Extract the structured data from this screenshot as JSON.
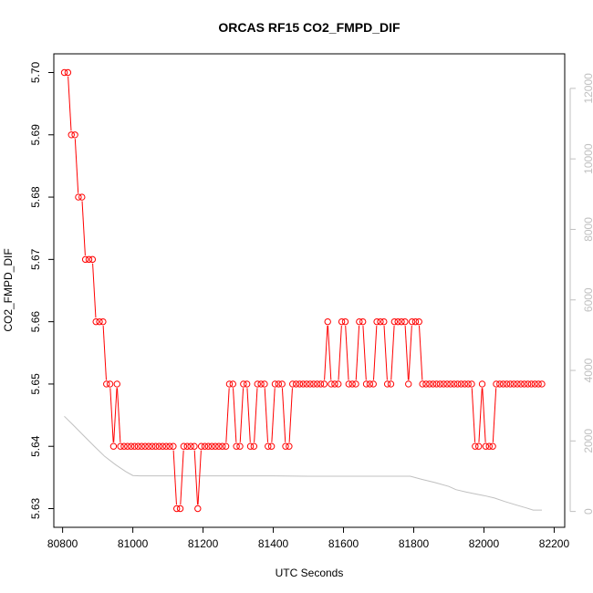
{
  "chart_data": {
    "type": "scatter",
    "title": "ORCAS RF15 CO2_FMPD_DIF",
    "xlabel": "UTC Seconds",
    "ylabel": "CO2_FMPD_DIF",
    "xlim": [
      80775,
      82230
    ],
    "ylim": [
      5.627,
      5.703
    ],
    "y2lim": [
      -450,
      12980
    ],
    "x_ticks": [
      "80800",
      "81000",
      "81200",
      "81400",
      "81600",
      "81800",
      "82000",
      "82200"
    ],
    "y_ticks": [
      "5.63",
      "5.64",
      "5.65",
      "5.66",
      "5.67",
      "5.68",
      "5.69",
      "5.70"
    ],
    "y2_ticks": [
      "0",
      "2000",
      "4000",
      "6000",
      "8000",
      "10000",
      "12000"
    ],
    "grid": false,
    "legend": "none",
    "series": [
      {
        "style": "points-and-lines",
        "color": "#ff0000",
        "points": [
          [
            80805,
            5.7
          ],
          [
            80815,
            5.7
          ],
          [
            80825,
            5.69
          ],
          [
            80835,
            5.69
          ],
          [
            80845,
            5.68
          ],
          [
            80855,
            5.68
          ],
          [
            80865,
            5.67
          ],
          [
            80875,
            5.67
          ],
          [
            80885,
            5.67
          ],
          [
            80895,
            5.66
          ],
          [
            80905,
            5.66
          ],
          [
            80915,
            5.66
          ],
          [
            80925,
            5.65
          ],
          [
            80935,
            5.65
          ],
          [
            80945,
            5.64
          ],
          [
            80955,
            5.65
          ],
          [
            80965,
            5.64
          ],
          [
            80975,
            5.64
          ],
          [
            80985,
            5.64
          ],
          [
            80995,
            5.64
          ],
          [
            81005,
            5.64
          ],
          [
            81015,
            5.64
          ],
          [
            81025,
            5.64
          ],
          [
            81035,
            5.64
          ],
          [
            81045,
            5.64
          ],
          [
            81055,
            5.64
          ],
          [
            81065,
            5.64
          ],
          [
            81075,
            5.64
          ],
          [
            81085,
            5.64
          ],
          [
            81095,
            5.64
          ],
          [
            81105,
            5.64
          ],
          [
            81115,
            5.64
          ],
          [
            81125,
            5.63
          ],
          [
            81135,
            5.63
          ],
          [
            81145,
            5.64
          ],
          [
            81155,
            5.64
          ],
          [
            81165,
            5.64
          ],
          [
            81175,
            5.64
          ],
          [
            81185,
            5.63
          ],
          [
            81195,
            5.64
          ],
          [
            81205,
            5.64
          ],
          [
            81215,
            5.64
          ],
          [
            81225,
            5.64
          ],
          [
            81235,
            5.64
          ],
          [
            81245,
            5.64
          ],
          [
            81255,
            5.64
          ],
          [
            81265,
            5.64
          ],
          [
            81275,
            5.65
          ],
          [
            81285,
            5.65
          ],
          [
            81295,
            5.64
          ],
          [
            81305,
            5.64
          ],
          [
            81315,
            5.65
          ],
          [
            81325,
            5.65
          ],
          [
            81335,
            5.64
          ],
          [
            81345,
            5.64
          ],
          [
            81355,
            5.65
          ],
          [
            81365,
            5.65
          ],
          [
            81375,
            5.65
          ],
          [
            81385,
            5.64
          ],
          [
            81395,
            5.64
          ],
          [
            81405,
            5.65
          ],
          [
            81415,
            5.65
          ],
          [
            81425,
            5.65
          ],
          [
            81435,
            5.64
          ],
          [
            81445,
            5.64
          ],
          [
            81455,
            5.65
          ],
          [
            81465,
            5.65
          ],
          [
            81475,
            5.65
          ],
          [
            81485,
            5.65
          ],
          [
            81495,
            5.65
          ],
          [
            81505,
            5.65
          ],
          [
            81515,
            5.65
          ],
          [
            81525,
            5.65
          ],
          [
            81535,
            5.65
          ],
          [
            81545,
            5.65
          ],
          [
            81555,
            5.66
          ],
          [
            81565,
            5.65
          ],
          [
            81575,
            5.65
          ],
          [
            81585,
            5.65
          ],
          [
            81595,
            5.66
          ],
          [
            81605,
            5.66
          ],
          [
            81615,
            5.65
          ],
          [
            81625,
            5.65
          ],
          [
            81635,
            5.65
          ],
          [
            81645,
            5.66
          ],
          [
            81655,
            5.66
          ],
          [
            81665,
            5.65
          ],
          [
            81675,
            5.65
          ],
          [
            81685,
            5.65
          ],
          [
            81695,
            5.66
          ],
          [
            81705,
            5.66
          ],
          [
            81715,
            5.66
          ],
          [
            81725,
            5.65
          ],
          [
            81735,
            5.65
          ],
          [
            81745,
            5.66
          ],
          [
            81755,
            5.66
          ],
          [
            81765,
            5.66
          ],
          [
            81775,
            5.66
          ],
          [
            81785,
            5.65
          ],
          [
            81795,
            5.66
          ],
          [
            81805,
            5.66
          ],
          [
            81815,
            5.66
          ],
          [
            81825,
            5.65
          ],
          [
            81835,
            5.65
          ],
          [
            81845,
            5.65
          ],
          [
            81855,
            5.65
          ],
          [
            81865,
            5.65
          ],
          [
            81875,
            5.65
          ],
          [
            81885,
            5.65
          ],
          [
            81895,
            5.65
          ],
          [
            81905,
            5.65
          ],
          [
            81915,
            5.65
          ],
          [
            81925,
            5.65
          ],
          [
            81935,
            5.65
          ],
          [
            81945,
            5.65
          ],
          [
            81955,
            5.65
          ],
          [
            81965,
            5.65
          ],
          [
            81975,
            5.64
          ],
          [
            81985,
            5.64
          ],
          [
            81995,
            5.65
          ],
          [
            82005,
            5.64
          ],
          [
            82015,
            5.64
          ],
          [
            82025,
            5.64
          ],
          [
            82035,
            5.65
          ],
          [
            82045,
            5.65
          ],
          [
            82055,
            5.65
          ],
          [
            82065,
            5.65
          ],
          [
            82075,
            5.65
          ],
          [
            82085,
            5.65
          ],
          [
            82095,
            5.65
          ],
          [
            82105,
            5.65
          ],
          [
            82115,
            5.65
          ],
          [
            82125,
            5.65
          ],
          [
            82135,
            5.65
          ],
          [
            82145,
            5.65
          ],
          [
            82155,
            5.65
          ],
          [
            82165,
            5.65
          ]
        ]
      },
      {
        "style": "line",
        "axis": "right",
        "color": "#c0c0c0",
        "points": [
          [
            80805,
            2700
          ],
          [
            80830,
            2450
          ],
          [
            80860,
            2150
          ],
          [
            80890,
            1850
          ],
          [
            80920,
            1560
          ],
          [
            80950,
            1330
          ],
          [
            80980,
            1130
          ],
          [
            81000,
            1020
          ],
          [
            81020,
            1010
          ],
          [
            81100,
            1010
          ],
          [
            81200,
            1010
          ],
          [
            81300,
            1010
          ],
          [
            81400,
            1010
          ],
          [
            81500,
            1000
          ],
          [
            81600,
            1000
          ],
          [
            81700,
            1000
          ],
          [
            81790,
            1000
          ],
          [
            81820,
            920
          ],
          [
            81860,
            820
          ],
          [
            81900,
            710
          ],
          [
            81920,
            620
          ],
          [
            81950,
            550
          ],
          [
            81980,
            490
          ],
          [
            82000,
            450
          ],
          [
            82030,
            380
          ],
          [
            82060,
            280
          ],
          [
            82090,
            190
          ],
          [
            82120,
            100
          ],
          [
            82140,
            40
          ],
          [
            82165,
            40
          ]
        ]
      }
    ]
  }
}
